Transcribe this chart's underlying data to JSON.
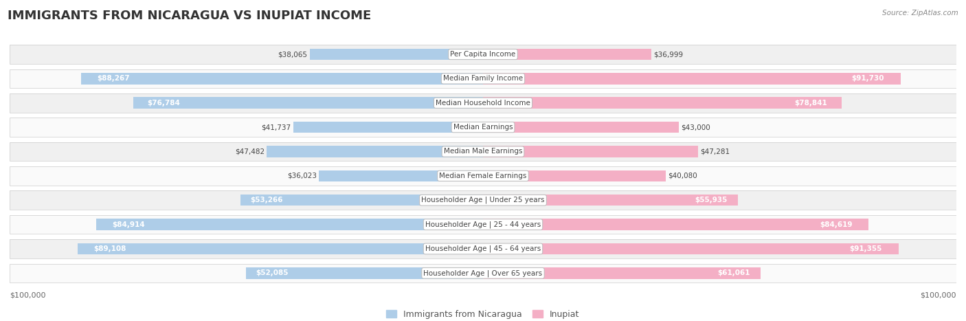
{
  "title": "IMMIGRANTS FROM NICARAGUA VS INUPIAT INCOME",
  "source": "Source: ZipAtlas.com",
  "categories": [
    "Per Capita Income",
    "Median Family Income",
    "Median Household Income",
    "Median Earnings",
    "Median Male Earnings",
    "Median Female Earnings",
    "Householder Age | Under 25 years",
    "Householder Age | 25 - 44 years",
    "Householder Age | 45 - 64 years",
    "Householder Age | Over 65 years"
  ],
  "nicaragua_values": [
    38065,
    88267,
    76784,
    41737,
    47482,
    36023,
    53266,
    84914,
    89108,
    52085
  ],
  "inupiat_values": [
    36999,
    91730,
    78841,
    43000,
    47281,
    40080,
    55935,
    84619,
    91355,
    61061
  ],
  "nicaragua_color": "#7bafd4",
  "inupiat_color": "#e8789a",
  "nicaragua_light_color": "#aecde8",
  "inupiat_light_color": "#f4afc5",
  "nicaragua_label": "Immigrants from Nicaragua",
  "inupiat_label": "Inupiat",
  "x_max": 100000,
  "background_color": "#ffffff",
  "row_alt_color": "#f0f0f0",
  "row_normal_color": "#fafafa",
  "title_fontsize": 13,
  "label_fontsize": 7.5,
  "value_fontsize": 7.5,
  "legend_fontsize": 9,
  "inside_threshold": 50000
}
